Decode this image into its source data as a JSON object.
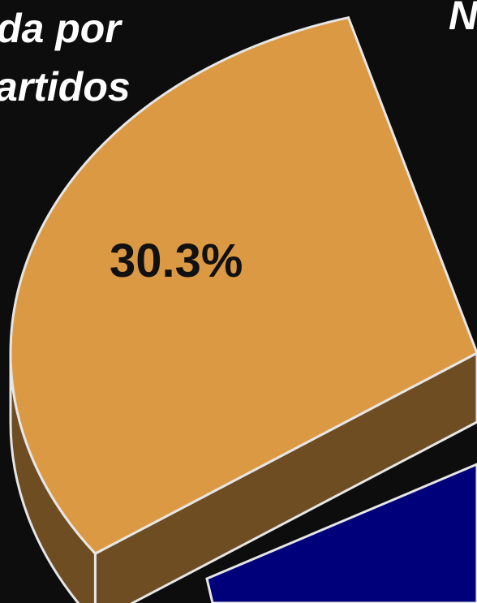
{
  "chart_data": {
    "type": "pie",
    "title_fragments": [
      "da por",
      "artidos",
      "N"
    ],
    "values": [
      30.3
    ],
    "value_labels": [
      "30.3%"
    ],
    "colors": [
      "#dc9944"
    ]
  }
}
